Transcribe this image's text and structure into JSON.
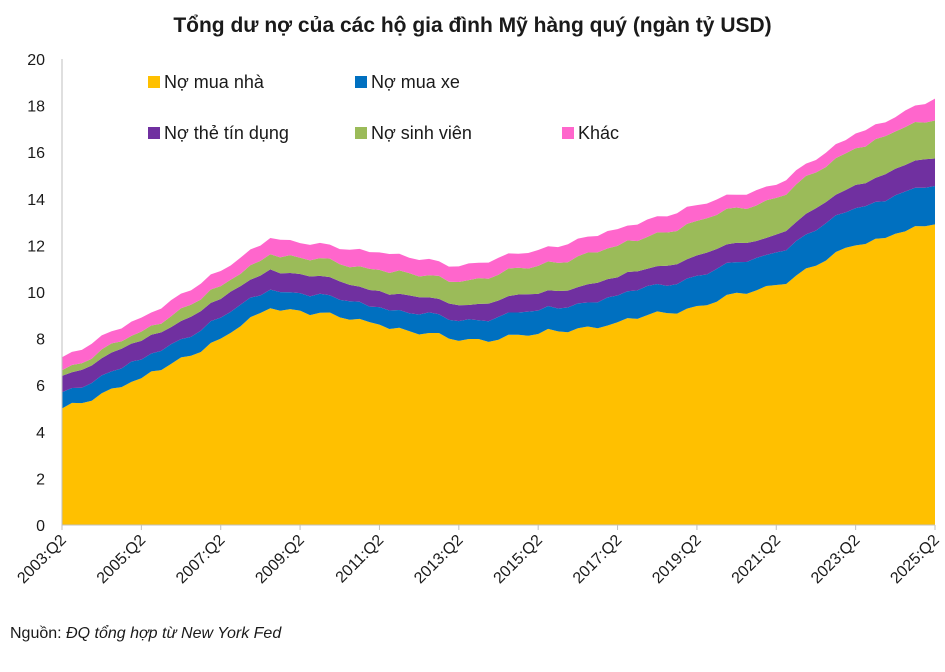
{
  "chart_data": {
    "type": "area",
    "stacked": true,
    "title": "Tổng dư nợ của các hộ gia đình Mỹ hàng quý (ngàn tỷ USD)",
    "xlabel": "",
    "ylabel": "",
    "ylim": [
      0,
      20
    ],
    "yticks": [
      0,
      2,
      4,
      6,
      8,
      10,
      12,
      14,
      16,
      18,
      20
    ],
    "grid": false,
    "legend_position": "top-left",
    "x_tick_labels": [
      "2003:Q2",
      "2005:Q2",
      "2007:Q2",
      "2009:Q2",
      "2011:Q2",
      "2013:Q2",
      "2015:Q2",
      "2017:Q2",
      "2019:Q2",
      "2021:Q2",
      "2023:Q2",
      "2025:Q2"
    ],
    "x_keypoints": [
      "2003:Q2",
      "2005:Q2",
      "2007:Q2",
      "2008:Q3",
      "2009:Q2",
      "2011:Q2",
      "2013:Q2",
      "2015:Q2",
      "2017:Q2",
      "2019:Q2",
      "2021:Q2",
      "2023:Q2",
      "2024:Q2",
      "2025:Q2"
    ],
    "series": [
      {
        "name": "Nợ mua nhà",
        "color": "#FFC000",
        "values": [
          5.0,
          6.3,
          8.0,
          9.3,
          9.2,
          8.6,
          7.9,
          8.2,
          8.7,
          9.4,
          10.3,
          12.0,
          12.5,
          12.9
        ]
      },
      {
        "name": "Nợ mua xe",
        "color": "#0070C0",
        "values": [
          0.7,
          0.8,
          0.9,
          0.8,
          0.75,
          0.75,
          0.85,
          1.0,
          1.15,
          1.3,
          1.4,
          1.6,
          1.65,
          1.65
        ]
      },
      {
        "name": "Nợ thẻ tín dụng",
        "color": "#7030A0",
        "values": [
          0.7,
          0.8,
          0.8,
          0.87,
          0.82,
          0.7,
          0.68,
          0.72,
          0.78,
          0.87,
          0.77,
          1.0,
          1.14,
          1.18
        ]
      },
      {
        "name": "Nợ sinh viên",
        "color": "#9BBB59",
        "values": [
          0.24,
          0.4,
          0.55,
          0.65,
          0.7,
          0.9,
          1.0,
          1.2,
          1.35,
          1.48,
          1.57,
          1.57,
          1.6,
          1.63
        ]
      },
      {
        "name": "Khác",
        "color": "#FF66CC",
        "values": [
          0.56,
          0.6,
          0.65,
          0.7,
          0.63,
          0.75,
          0.67,
          0.68,
          0.72,
          0.68,
          0.56,
          0.63,
          0.61,
          0.94
        ]
      }
    ]
  },
  "footer": {
    "source_label": "Nguồn:",
    "source_text": "ĐQ tổng hợp từ New York Fed"
  }
}
